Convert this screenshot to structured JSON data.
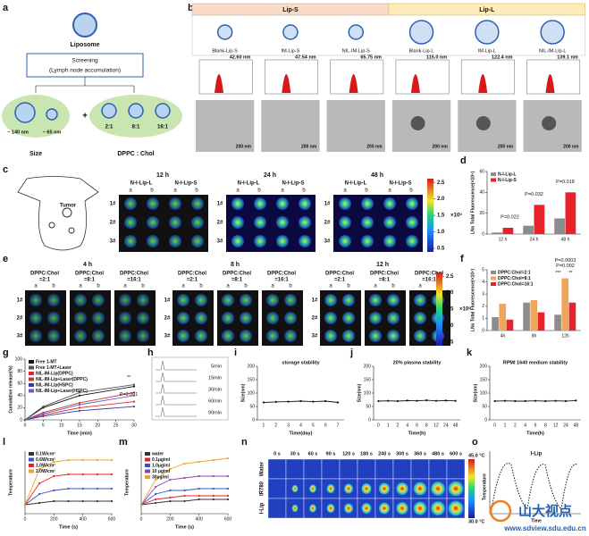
{
  "panels": {
    "a": {
      "label": "a",
      "liposome": "Liposome",
      "screening": [
        "Screening",
        "(Lymph node accumulation)"
      ],
      "size_labels": [
        "~ 140 nm",
        "~ 65 nm"
      ],
      "plus": "+",
      "ratios": [
        "2:1",
        "8:1",
        "16:1"
      ],
      "captions": [
        "Size",
        "DPPC : Chol"
      ]
    },
    "b": {
      "label": "b",
      "groups": [
        "Lip-S",
        "Lip-L"
      ],
      "items": [
        "Blank-Lip-S",
        "IM-Lip-S",
        "NIL-IM-Lip-S",
        "Blank-Lip-L",
        "IM-Lip-L",
        "NIL-IM-Lip-L"
      ],
      "sizes": [
        "42.60 nm",
        "47.54 nm",
        "65.75 nm",
        "115.0 nm",
        "122.4 nm",
        "139.1 nm"
      ],
      "scale": "200 nm"
    },
    "c": {
      "label": "c",
      "tumor": "Tumor",
      "times": [
        "12 h",
        "24 h",
        "48 h"
      ],
      "groups": [
        "N-I-Lip-L",
        "N-I-Lip-S"
      ],
      "ab": [
        "a",
        "b"
      ],
      "rows": [
        "1#",
        "2#",
        "3#"
      ],
      "scale_ticks": [
        {
          "value": 2.5,
          "label": "2.5"
        },
        {
          "value": 2,
          "label": "2.0"
        },
        {
          "value": 1.5,
          "label": "1.5"
        },
        {
          "value": 1,
          "label": "1.0"
        },
        {
          "value": 0.5,
          "label": "0.5"
        }
      ],
      "unit": "×10⁹"
    },
    "e": {
      "label": "e",
      "times": [
        "4 h",
        "8 h",
        "12 h"
      ],
      "groups": [
        [
          "DPPC:Chol",
          "=2:1"
        ],
        [
          "DPPC:Chol",
          "=8:1"
        ],
        [
          "DPPC:Chol",
          "=16:1"
        ]
      ],
      "ab": [
        "a",
        "b"
      ],
      "rows": [
        "1#",
        "2#",
        "3#"
      ],
      "scale_ticks": [
        {
          "value": 2.5,
          "label": "2.5"
        },
        {
          "value": 2,
          "label": "2.0"
        },
        {
          "value": 1.5,
          "label": "1.5"
        },
        {
          "value": 1,
          "label": "1.0"
        },
        {
          "value": 0.5,
          "label": "0.5"
        }
      ],
      "unit": "×10⁹"
    },
    "h": {
      "label": "h",
      "times": [
        "5min",
        "15min",
        "30min",
        "60min",
        "90min"
      ]
    },
    "n": {
      "label": "n",
      "times": [
        "0 s",
        "30 s",
        "60 s",
        "90 s",
        "120 s",
        "180 s",
        "240 s",
        "300 s",
        "360 s",
        "480 s",
        "600 s"
      ],
      "rows": [
        "Water",
        "IR780",
        "I-Lip"
      ],
      "scale": [
        "45.0 °C",
        "30.0 °C"
      ]
    },
    "o": {
      "label": "o",
      "title": "I-Lip",
      "ylabel": "Temperature",
      "xlabel": "Time"
    },
    "watermark": {
      "name": "山大视点",
      "url": "www.sdview.sdu.edu.cn"
    }
  },
  "chart_data": [
    {
      "type": "bar",
      "label": "d",
      "ylabel": "LNs Total Fluorescence(×10⁹)",
      "categories": [
        "12 h",
        "24 h",
        "48 h"
      ],
      "series": [
        {
          "name": "N-I-Lip-L",
          "color": "#8c8c8c",
          "values": [
            1.5,
            8,
            15
          ]
        },
        {
          "name": "N-I-Lip-S",
          "color": "#e8222a",
          "values": [
            6,
            28,
            40
          ]
        }
      ],
      "ylim": [
        0,
        60
      ],
      "yticks": [
        0,
        20,
        40,
        60
      ],
      "annotations": [
        "P=0.022",
        "P=0.032",
        "P=0.018"
      ]
    },
    {
      "type": "bar",
      "label": "f",
      "ylabel": "LNs Total Fluorescence(×10⁹)",
      "categories": [
        "4h",
        "8h",
        "12h"
      ],
      "series": [
        {
          "name": "DPPC:Chol=2:1",
          "color": "#8c8c8c",
          "values": [
            1.1,
            2.3,
            1.3
          ]
        },
        {
          "name": "DPPC:Chol=8:1",
          "color": "#f0a65a",
          "values": [
            2.2,
            2.5,
            4.3
          ]
        },
        {
          "name": "DPPC:Chol=16:1",
          "color": "#e8222a",
          "values": [
            0.9,
            1.5,
            2.3
          ]
        }
      ],
      "ylim": [
        0,
        5
      ],
      "yticks": [
        0,
        1,
        2,
        3,
        4,
        5
      ],
      "annotations": [
        "P=0.0003",
        "P=0.002",
        "***",
        "**"
      ]
    },
    {
      "type": "line",
      "label": "g",
      "ylabel": "Cumulative release(%)",
      "xlabel": "Time (min)",
      "x": [
        0,
        5,
        15,
        30
      ],
      "xlim": [
        0,
        30
      ],
      "xticks": [
        0,
        5,
        10,
        15,
        20,
        25,
        30
      ],
      "ylim": [
        0,
        100
      ],
      "yticks": [
        0,
        20,
        40,
        60,
        80,
        100
      ],
      "series": [
        {
          "name": "Free 1-MT",
          "color": "#111111",
          "values": [
            0,
            20,
            40,
            55
          ]
        },
        {
          "name": "Free 1-MT+Laser",
          "color": "#555555",
          "values": [
            0,
            22,
            45,
            58
          ]
        },
        {
          "name": "NIL-IM-Lip(DPPC)",
          "color": "#e8222a",
          "values": [
            0,
            8,
            20,
            30
          ]
        },
        {
          "name": "NIL-IM-Lip+Laser(DPPC)",
          "color": "#c0392b",
          "values": [
            0,
            12,
            28,
            45
          ]
        },
        {
          "name": "NIL-IM-Lip(HSPC)",
          "color": "#2c3e9e",
          "values": [
            0,
            6,
            15,
            22
          ]
        },
        {
          "name": "NIL-IM-Lip+Laser(HSPC)",
          "color": "#6a5acd",
          "values": [
            0,
            10,
            25,
            40
          ]
        }
      ],
      "annotations": [
        "**",
        "P=0.001"
      ]
    },
    {
      "type": "line",
      "label": "i",
      "title": "storage stability",
      "ylabel": "Size(nm)",
      "xlabel": "Time(day)",
      "categories": [
        1,
        2,
        3,
        4,
        5,
        6,
        7
      ],
      "values": [
        65,
        67,
        68,
        70,
        68,
        70,
        65
      ],
      "color": "#111111",
      "ylim": [
        0,
        200
      ],
      "yticks": [
        0,
        50,
        100,
        150,
        200
      ]
    },
    {
      "type": "line",
      "label": "j",
      "title": "20% plasma stability",
      "ylabel": "Size(nm)",
      "xlabel": "Time(h)",
      "categories": [
        0,
        1,
        2,
        4,
        6,
        8,
        12,
        24,
        48
      ],
      "values": [
        70,
        71,
        70,
        72,
        71,
        73,
        71,
        72,
        71
      ],
      "color": "#111111",
      "ylim": [
        0,
        200
      ],
      "yticks": [
        0,
        50,
        100,
        150,
        200
      ]
    },
    {
      "type": "line",
      "label": "k",
      "title": "RPMI 1640 medium stability",
      "ylabel": "Size(nm)",
      "xlabel": "Time(h)",
      "categories": [
        0,
        1,
        2,
        4,
        6,
        8,
        12,
        24,
        48
      ],
      "values": [
        70,
        71,
        70,
        70,
        71,
        70,
        71,
        70,
        72
      ],
      "color": "#111111",
      "ylim": [
        0,
        200
      ],
      "yticks": [
        0,
        50,
        100,
        150,
        200
      ]
    },
    {
      "type": "line",
      "label": "l",
      "ylabel": "Temperature",
      "xlabel": "Time (s)",
      "x": [
        0,
        100,
        200,
        300,
        400,
        500,
        600
      ],
      "xlim": [
        0,
        600
      ],
      "xticks": [
        0,
        200,
        400,
        600
      ],
      "ylim": [
        25,
        60
      ],
      "series": [
        {
          "name": "0.1W/cm²",
          "color": "#333333",
          "values": [
            30,
            31,
            32,
            32,
            32,
            32,
            32
          ]
        },
        {
          "name": "0.6W/cm²",
          "color": "#3b4fc4",
          "values": [
            30,
            36,
            38,
            39,
            39,
            39,
            39
          ]
        },
        {
          "name": "1.0W/cm²",
          "color": "#e8222a",
          "values": [
            30,
            42,
            46,
            47,
            47,
            47,
            47
          ]
        },
        {
          "name": "2.0W/cm²",
          "color": "#f0a030",
          "values": [
            30,
            50,
            54,
            55,
            55,
            55,
            55
          ]
        }
      ]
    },
    {
      "type": "line",
      "label": "m",
      "ylabel": "Temperature",
      "xlabel": "Time (s)",
      "x": [
        0,
        100,
        200,
        300,
        400,
        500,
        600
      ],
      "xlim": [
        0,
        600
      ],
      "xticks": [
        0,
        200,
        400,
        600
      ],
      "ylim": [
        25,
        60
      ],
      "series": [
        {
          "name": "water",
          "color": "#333333",
          "values": [
            30,
            31,
            32,
            32,
            33,
            33,
            33
          ]
        },
        {
          "name": "0.1µg/ml",
          "color": "#e8222a",
          "values": [
            30,
            33,
            34,
            35,
            35,
            35,
            35
          ]
        },
        {
          "name": "1.0µg/ml",
          "color": "#3b4fc4",
          "values": [
            30,
            36,
            38,
            38,
            39,
            39,
            39
          ]
        },
        {
          "name": "10 µg/ml",
          "color": "#8e44ad",
          "values": [
            30,
            40,
            44,
            45,
            46,
            46,
            46
          ]
        },
        {
          "name": "30µg/ml",
          "color": "#f0a030",
          "values": [
            30,
            44,
            50,
            53,
            54,
            55,
            56
          ]
        }
      ]
    }
  ]
}
